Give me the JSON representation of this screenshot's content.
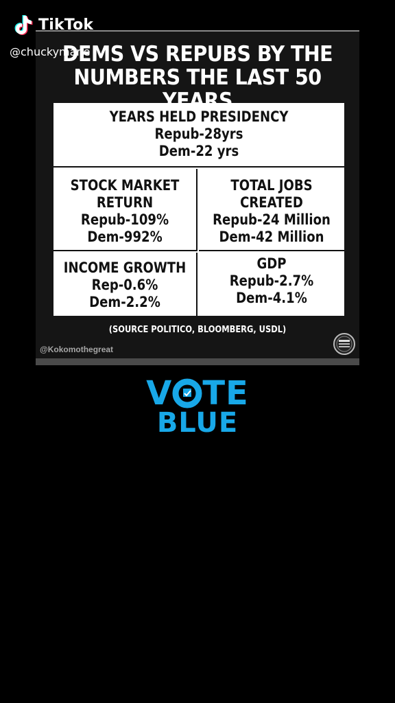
{
  "app": {
    "name": "TikTok",
    "username": "@chuckymane"
  },
  "card": {
    "headline_line1": "DEMS VS REPUBS BY THE",
    "headline_line2": "NUMBERS THE LAST 50 YEARS",
    "presidency": {
      "title": "YEARS HELD PRESIDENCY",
      "repub": "Repub-28yrs",
      "dem": "Dem-22 yrs"
    },
    "stock": {
      "title1": "STOCK MARKET",
      "title2": "RETURN",
      "repub": "Repub-109%",
      "dem": "Dem-992%"
    },
    "jobs": {
      "title1": "TOTAL JOBS",
      "title2": "CREATED",
      "repub": "Repub-24 Million",
      "dem": "Dem-42 Million"
    },
    "income": {
      "title": "INCOME GROWTH",
      "repub": "Rep-0.6%",
      "dem": "Dem-2.2%"
    },
    "gdp": {
      "title": "GDP",
      "repub": "Repub-2.7%",
      "dem": "Dem-4.1%"
    },
    "source": "(SOURCE POLITICO, BLOOMBERG, USDL)",
    "credit": "@Kokomothegreat"
  },
  "overlay": {
    "vote_v": "V",
    "vote_rest": "TE",
    "blue": "BLUE"
  },
  "colors": {
    "accent": "#18a8e8",
    "background": "#000000"
  },
  "icons": {
    "logo": "tiktok-logo-icon",
    "seal": "seal-badge-icon",
    "ballot": "ballot-o-icon"
  }
}
